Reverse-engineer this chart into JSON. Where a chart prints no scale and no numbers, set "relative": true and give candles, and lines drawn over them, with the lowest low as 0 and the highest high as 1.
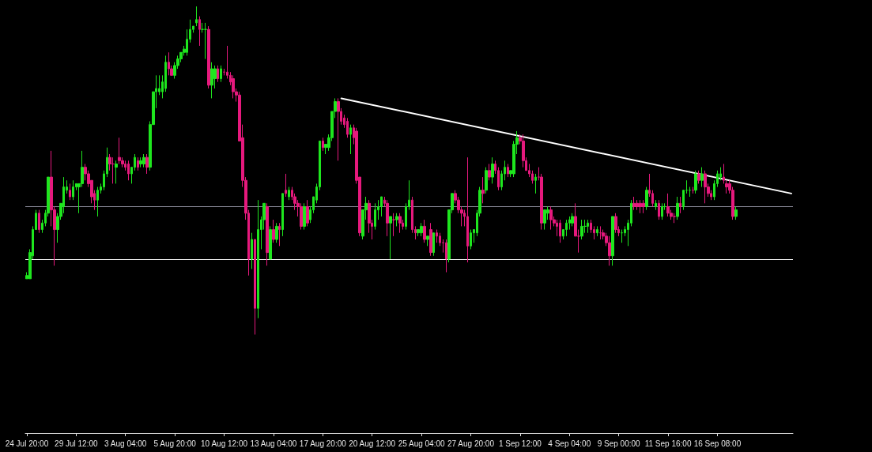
{
  "chart_data": {
    "type": "candlestick",
    "relative": true,
    "categories": [
      "24 Jul 20:00",
      null,
      null,
      null,
      null,
      null,
      null,
      null,
      null,
      null,
      null,
      null,
      null,
      null,
      null,
      null,
      "29 Jul 12:00",
      null,
      null,
      null,
      null,
      null,
      null,
      null,
      null,
      null,
      null,
      null,
      null,
      null,
      null,
      null,
      "3 Aug 04:00",
      null,
      null,
      null,
      null,
      null,
      null,
      null,
      null,
      null,
      null,
      null,
      null,
      null,
      null,
      null,
      "5 Aug 20:00",
      null,
      null,
      null,
      null,
      null,
      null,
      null,
      null,
      null,
      null,
      null,
      null,
      null,
      null,
      null,
      "10 Aug 12:00",
      null,
      null,
      null,
      null,
      null,
      null,
      null,
      null,
      null,
      null,
      null,
      null,
      null,
      null,
      null,
      "13 Aug 04:00",
      null,
      null,
      null,
      null,
      null,
      null,
      null,
      null,
      null,
      null,
      null,
      null,
      null,
      null,
      null,
      "17 Aug 20:00",
      null,
      null,
      null,
      null,
      null,
      null,
      null,
      null,
      null,
      null,
      null,
      null,
      null,
      null,
      null,
      "20 Aug 12:00",
      null,
      null,
      null,
      null,
      null,
      null,
      null,
      null,
      null,
      null,
      null,
      null,
      null,
      null,
      null,
      "25 Aug 04:00",
      null,
      null,
      null,
      null,
      null,
      null,
      null,
      null,
      null,
      null,
      null,
      null,
      null,
      null,
      null,
      "27 Aug 20:00",
      null,
      null,
      null,
      null,
      null,
      null,
      null,
      null,
      null,
      null,
      null,
      null,
      null,
      null,
      null,
      "1 Sep 12:00",
      null,
      null,
      null,
      null,
      null,
      null,
      null,
      null,
      null,
      null,
      null,
      null,
      null,
      null,
      null,
      "4 Sep 04:00",
      null,
      null,
      null,
      null,
      null,
      null,
      null,
      null,
      null,
      null,
      null,
      null,
      null,
      null,
      null,
      "9 Sep 00:00",
      null,
      null,
      null,
      null,
      null,
      null,
      null,
      null,
      null,
      null,
      null,
      null,
      null,
      null,
      null,
      "11 Sep 16:00",
      null,
      null,
      null,
      null,
      null,
      null,
      null,
      null,
      null,
      null,
      null,
      null,
      null,
      null,
      null,
      "16 Sep 08:00",
      null,
      null,
      null,
      null,
      null,
      null,
      null,
      null,
      null,
      null,
      null,
      null,
      null,
      null,
      null,
      null,
      null,
      null,
      null,
      null,
      null,
      null,
      null,
      null
    ],
    "ohlc": [
      [
        0.17,
        0.19,
        0.17,
        0.18
      ],
      [
        0.17,
        0.26,
        0.17,
        0.25
      ],
      [
        0.24,
        0.33,
        0.23,
        0.32
      ],
      [
        0.32,
        0.38,
        0.32,
        0.37
      ],
      [
        0.37,
        0.38,
        0.31,
        0.32
      ],
      [
        0.32,
        0.35,
        0.31,
        0.34
      ],
      [
        0.34,
        0.38,
        0.33,
        0.37
      ],
      [
        0.37,
        0.48,
        0.36,
        0.48
      ],
      [
        0.48,
        0.56,
        0.33,
        0.38
      ],
      [
        0.38,
        0.39,
        0.21,
        0.32
      ],
      [
        0.32,
        0.37,
        0.28,
        0.36
      ],
      [
        0.36,
        0.4,
        0.35,
        0.4
      ],
      [
        0.39,
        0.48,
        0.37,
        0.45
      ],
      [
        0.44,
        0.47,
        0.43,
        0.45
      ],
      [
        0.44,
        0.46,
        0.41,
        0.42
      ],
      [
        0.42,
        0.47,
        0.41,
        0.45
      ],
      [
        0.45,
        0.46,
        0.44,
        0.46
      ],
      [
        0.45,
        0.46,
        0.37,
        0.46
      ],
      [
        0.46,
        0.56,
        0.45,
        0.51
      ],
      [
        0.51,
        0.52,
        0.47,
        0.49
      ],
      [
        0.49,
        0.5,
        0.45,
        0.46
      ],
      [
        0.47,
        0.47,
        0.4,
        0.42
      ],
      [
        0.43,
        0.44,
        0.38,
        0.41
      ],
      [
        0.41,
        0.45,
        0.36,
        0.44
      ],
      [
        0.44,
        0.46,
        0.43,
        0.45
      ],
      [
        0.45,
        0.5,
        0.44,
        0.49
      ],
      [
        0.49,
        0.57,
        0.48,
        0.54
      ],
      [
        0.54,
        0.55,
        0.5,
        0.52
      ],
      [
        0.52,
        0.54,
        0.46,
        0.52
      ],
      [
        0.51,
        0.53,
        0.46,
        0.52
      ],
      [
        0.54,
        0.6,
        0.52,
        0.53
      ],
      [
        0.53,
        0.54,
        0.51,
        0.52
      ],
      [
        0.52,
        0.53,
        0.5,
        0.51
      ],
      [
        0.52,
        0.53,
        0.47,
        0.49
      ],
      [
        0.49,
        0.51,
        0.46,
        0.51
      ],
      [
        0.51,
        0.55,
        0.5,
        0.54
      ],
      [
        0.53,
        0.54,
        0.5,
        0.51
      ],
      [
        0.52,
        0.54,
        0.51,
        0.53
      ],
      [
        0.52,
        0.55,
        0.51,
        0.54
      ],
      [
        0.54,
        0.55,
        0.49,
        0.51
      ],
      [
        0.51,
        0.65,
        0.5,
        0.64
      ],
      [
        0.64,
        0.74,
        0.64,
        0.74
      ],
      [
        0.74,
        0.79,
        0.69,
        0.75
      ],
      [
        0.74,
        0.79,
        0.73,
        0.75
      ],
      [
        0.74,
        0.79,
        0.72,
        0.77
      ],
      [
        0.75,
        0.85,
        0.74,
        0.83
      ],
      [
        0.83,
        0.86,
        0.79,
        0.81
      ],
      [
        0.81,
        0.82,
        0.79,
        0.79
      ],
      [
        0.79,
        0.83,
        0.78,
        0.82
      ],
      [
        0.82,
        0.85,
        0.81,
        0.84
      ],
      [
        0.84,
        0.86,
        0.83,
        0.86
      ],
      [
        0.86,
        0.88,
        0.85,
        0.87
      ],
      [
        0.86,
        0.93,
        0.85,
        0.9
      ],
      [
        0.9,
        0.96,
        0.89,
        0.93
      ],
      [
        0.93,
        0.94,
        0.92,
        0.94
      ],
      [
        0.95,
        1.0,
        0.94,
        0.96
      ],
      [
        0.96,
        0.97,
        0.88,
        0.93
      ],
      [
        0.93,
        0.95,
        0.92,
        0.93
      ],
      [
        0.93,
        0.95,
        0.84,
        0.93
      ],
      [
        0.93,
        0.94,
        0.75,
        0.76
      ],
      [
        0.76,
        0.83,
        0.72,
        0.81
      ],
      [
        0.78,
        0.82,
        0.75,
        0.81
      ],
      [
        0.81,
        0.82,
        0.77,
        0.78
      ],
      [
        0.78,
        0.82,
        0.77,
        0.81
      ],
      [
        0.8,
        0.81,
        0.79,
        0.8
      ],
      [
        0.8,
        0.88,
        0.78,
        0.79
      ],
      [
        0.79,
        0.8,
        0.76,
        0.77
      ],
      [
        0.78,
        0.79,
        0.72,
        0.74
      ],
      [
        0.74,
        0.75,
        0.71,
        0.73
      ],
      [
        0.73,
        0.74,
        0.59,
        0.59
      ],
      [
        0.6,
        0.64,
        0.45,
        0.47
      ],
      [
        0.47,
        0.48,
        0.35,
        0.37
      ],
      [
        0.37,
        0.38,
        0.18,
        0.23
      ],
      [
        0.23,
        0.31,
        0.2,
        0.29
      ],
      [
        0.29,
        0.29,
        0.0,
        0.08
      ],
      [
        0.08,
        0.41,
        0.05,
        0.32
      ],
      [
        0.32,
        0.36,
        0.26,
        0.35
      ],
      [
        0.35,
        0.4,
        0.32,
        0.4
      ],
      [
        0.39,
        0.4,
        0.21,
        0.25
      ],
      [
        0.23,
        0.33,
        0.23,
        0.32
      ],
      [
        0.32,
        0.35,
        0.28,
        0.29
      ],
      [
        0.29,
        0.34,
        0.28,
        0.33
      ],
      [
        0.33,
        0.34,
        0.27,
        0.32
      ],
      [
        0.32,
        0.43,
        0.3,
        0.43
      ],
      [
        0.44,
        0.49,
        0.42,
        0.43
      ],
      [
        0.42,
        0.45,
        0.41,
        0.44
      ],
      [
        0.44,
        0.45,
        0.41,
        0.42
      ],
      [
        0.42,
        0.43,
        0.38,
        0.4
      ],
      [
        0.4,
        0.41,
        0.36,
        0.39
      ],
      [
        0.39,
        0.4,
        0.32,
        0.33
      ],
      [
        0.33,
        0.4,
        0.32,
        0.39
      ],
      [
        0.39,
        0.41,
        0.33,
        0.34
      ],
      [
        0.35,
        0.39,
        0.34,
        0.38
      ],
      [
        0.38,
        0.42,
        0.37,
        0.42
      ],
      [
        0.41,
        0.46,
        0.4,
        0.45
      ],
      [
        0.45,
        0.59,
        0.44,
        0.59
      ],
      [
        0.59,
        0.6,
        0.56,
        0.57
      ],
      [
        0.57,
        0.58,
        0.55,
        0.58
      ],
      [
        0.57,
        0.61,
        0.56,
        0.6
      ],
      [
        0.6,
        0.68,
        0.59,
        0.68
      ],
      [
        0.68,
        0.72,
        0.66,
        0.71
      ],
      [
        0.71,
        0.72,
        0.53,
        0.68
      ],
      [
        0.68,
        0.69,
        0.64,
        0.65
      ],
      [
        0.66,
        0.67,
        0.63,
        0.64
      ],
      [
        0.65,
        0.66,
        0.6,
        0.61
      ],
      [
        0.61,
        0.64,
        0.55,
        0.63
      ],
      [
        0.63,
        0.64,
        0.58,
        0.6
      ],
      [
        0.62,
        0.63,
        0.46,
        0.47
      ],
      [
        0.48,
        0.48,
        0.3,
        0.31
      ],
      [
        0.3,
        0.38,
        0.29,
        0.38
      ],
      [
        0.38,
        0.42,
        0.35,
        0.4
      ],
      [
        0.4,
        0.41,
        0.31,
        0.34
      ],
      [
        0.34,
        0.35,
        0.29,
        0.33
      ],
      [
        0.33,
        0.4,
        0.32,
        0.38
      ],
      [
        0.38,
        0.41,
        0.35,
        0.39
      ],
      [
        0.39,
        0.42,
        0.36,
        0.42
      ],
      [
        0.41,
        0.42,
        0.39,
        0.4
      ],
      [
        0.4,
        0.41,
        0.3,
        0.34
      ],
      [
        0.34,
        0.36,
        0.23,
        0.36
      ],
      [
        0.35,
        0.37,
        0.3,
        0.35
      ],
      [
        0.35,
        0.37,
        0.33,
        0.36
      ],
      [
        0.36,
        0.37,
        0.31,
        0.34
      ],
      [
        0.34,
        0.35,
        0.32,
        0.33
      ],
      [
        0.33,
        0.4,
        0.32,
        0.39
      ],
      [
        0.39,
        0.47,
        0.38,
        0.41
      ],
      [
        0.41,
        0.42,
        0.31,
        0.32
      ],
      [
        0.32,
        0.33,
        0.29,
        0.31
      ],
      [
        0.31,
        0.32,
        0.3,
        0.32
      ],
      [
        0.31,
        0.34,
        0.3,
        0.33
      ],
      [
        0.33,
        0.35,
        0.28,
        0.29
      ],
      [
        0.29,
        0.3,
        0.27,
        0.3
      ],
      [
        0.32,
        0.34,
        0.24,
        0.25
      ],
      [
        0.25,
        0.31,
        0.24,
        0.31
      ],
      [
        0.31,
        0.32,
        0.28,
        0.3
      ],
      [
        0.3,
        0.31,
        0.27,
        0.28
      ],
      [
        0.28,
        0.29,
        0.25,
        0.28
      ],
      [
        0.28,
        0.29,
        0.19,
        0.23
      ],
      [
        0.23,
        0.38,
        0.22,
        0.38
      ],
      [
        0.38,
        0.43,
        0.37,
        0.43
      ],
      [
        0.43,
        0.44,
        0.4,
        0.41
      ],
      [
        0.41,
        0.42,
        0.37,
        0.38
      ],
      [
        0.38,
        0.39,
        0.33,
        0.37
      ],
      [
        0.37,
        0.38,
        0.33,
        0.36
      ],
      [
        0.36,
        0.54,
        0.22,
        0.27
      ],
      [
        0.27,
        0.32,
        0.26,
        0.31
      ],
      [
        0.31,
        0.32,
        0.28,
        0.32
      ],
      [
        0.31,
        0.38,
        0.3,
        0.37
      ],
      [
        0.37,
        0.45,
        0.36,
        0.44
      ],
      [
        0.44,
        0.48,
        0.4,
        0.43
      ],
      [
        0.44,
        0.51,
        0.43,
        0.5
      ],
      [
        0.5,
        0.52,
        0.47,
        0.48
      ],
      [
        0.48,
        0.54,
        0.46,
        0.52
      ],
      [
        0.52,
        0.53,
        0.49,
        0.5
      ],
      [
        0.5,
        0.51,
        0.44,
        0.45
      ],
      [
        0.45,
        0.5,
        0.44,
        0.49
      ],
      [
        0.49,
        0.53,
        0.47,
        0.51
      ],
      [
        0.51,
        0.52,
        0.48,
        0.49
      ],
      [
        0.49,
        0.5,
        0.48,
        0.5
      ],
      [
        0.49,
        0.59,
        0.48,
        0.58
      ],
      [
        0.58,
        0.62,
        0.55,
        0.6
      ],
      [
        0.6,
        0.61,
        0.58,
        0.59
      ],
      [
        0.59,
        0.61,
        0.51,
        0.53
      ],
      [
        0.53,
        0.54,
        0.5,
        0.5
      ],
      [
        0.5,
        0.52,
        0.48,
        0.49
      ],
      [
        0.49,
        0.5,
        0.46,
        0.47
      ],
      [
        0.47,
        0.49,
        0.43,
        0.48
      ],
      [
        0.48,
        0.51,
        0.47,
        0.48
      ],
      [
        0.48,
        0.49,
        0.32,
        0.34
      ],
      [
        0.34,
        0.38,
        0.32,
        0.38
      ],
      [
        0.37,
        0.39,
        0.35,
        0.38
      ],
      [
        0.38,
        0.39,
        0.32,
        0.35
      ],
      [
        0.35,
        0.36,
        0.33,
        0.34
      ],
      [
        0.34,
        0.35,
        0.3,
        0.33
      ],
      [
        0.34,
        0.35,
        0.28,
        0.3
      ],
      [
        0.3,
        0.32,
        0.29,
        0.32
      ],
      [
        0.32,
        0.35,
        0.3,
        0.34
      ],
      [
        0.34,
        0.36,
        0.32,
        0.35
      ],
      [
        0.34,
        0.37,
        0.33,
        0.36
      ],
      [
        0.36,
        0.4,
        0.3,
        0.3
      ],
      [
        0.3,
        0.32,
        0.25,
        0.3
      ],
      [
        0.3,
        0.35,
        0.29,
        0.33
      ],
      [
        0.33,
        0.35,
        0.31,
        0.33
      ],
      [
        0.33,
        0.35,
        0.31,
        0.34
      ],
      [
        0.34,
        0.35,
        0.31,
        0.32
      ],
      [
        0.32,
        0.33,
        0.29,
        0.31
      ],
      [
        0.31,
        0.33,
        0.3,
        0.32
      ],
      [
        0.31,
        0.33,
        0.29,
        0.31
      ],
      [
        0.31,
        0.32,
        0.29,
        0.3
      ],
      [
        0.3,
        0.31,
        0.27,
        0.28
      ],
      [
        0.28,
        0.3,
        0.21,
        0.24
      ],
      [
        0.24,
        0.36,
        0.21,
        0.36
      ],
      [
        0.36,
        0.37,
        0.31,
        0.32
      ],
      [
        0.32,
        0.33,
        0.3,
        0.31
      ],
      [
        0.31,
        0.32,
        0.28,
        0.31
      ],
      [
        0.31,
        0.33,
        0.3,
        0.32
      ],
      [
        0.32,
        0.35,
        0.27,
        0.34
      ],
      [
        0.34,
        0.41,
        0.33,
        0.4
      ],
      [
        0.4,
        0.42,
        0.38,
        0.39
      ],
      [
        0.4,
        0.41,
        0.38,
        0.39
      ],
      [
        0.4,
        0.41,
        0.37,
        0.39
      ],
      [
        0.4,
        0.41,
        0.37,
        0.39
      ],
      [
        0.39,
        0.45,
        0.38,
        0.44
      ],
      [
        0.44,
        0.49,
        0.42,
        0.43
      ],
      [
        0.43,
        0.44,
        0.39,
        0.4
      ],
      [
        0.39,
        0.41,
        0.38,
        0.4
      ],
      [
        0.4,
        0.41,
        0.35,
        0.36
      ],
      [
        0.36,
        0.4,
        0.35,
        0.39
      ],
      [
        0.39,
        0.4,
        0.38,
        0.39
      ],
      [
        0.39,
        0.43,
        0.36,
        0.37
      ],
      [
        0.37,
        0.38,
        0.35,
        0.36
      ],
      [
        0.36,
        0.37,
        0.34,
        0.36
      ],
      [
        0.36,
        0.42,
        0.35,
        0.4
      ],
      [
        0.4,
        0.42,
        0.37,
        0.39
      ],
      [
        0.39,
        0.44,
        0.38,
        0.44
      ],
      [
        0.44,
        0.47,
        0.43,
        0.44
      ],
      [
        0.44,
        0.45,
        0.42,
        0.44
      ],
      [
        0.44,
        0.45,
        0.43,
        0.44
      ],
      [
        0.44,
        0.5,
        0.43,
        0.49
      ],
      [
        0.49,
        0.5,
        0.46,
        0.47
      ],
      [
        0.47,
        0.51,
        0.45,
        0.49
      ],
      [
        0.49,
        0.5,
        0.4,
        0.45
      ],
      [
        0.45,
        0.46,
        0.42,
        0.43
      ],
      [
        0.43,
        0.44,
        0.41,
        0.42
      ],
      [
        0.42,
        0.47,
        0.41,
        0.46
      ],
      [
        0.46,
        0.5,
        0.45,
        0.49
      ],
      [
        0.48,
        0.51,
        0.47,
        0.49
      ],
      [
        0.48,
        0.52,
        0.46,
        0.47
      ],
      [
        0.46,
        0.47,
        0.43,
        0.45
      ],
      [
        0.46,
        0.47,
        0.43,
        0.44
      ],
      [
        0.44,
        0.45,
        0.35,
        0.36
      ],
      [
        0.36,
        0.39,
        0.35,
        0.38
      ],
      null,
      null,
      null,
      null,
      null,
      null,
      null,
      null,
      null,
      null,
      null,
      null,
      null,
      null,
      null,
      null,
      null,
      null
    ],
    "colors": [
      "#1ee61e",
      "#1ee61e",
      "#1ee61e",
      "#1ee61e",
      "#e6197d",
      "#1ee61e",
      "#1ee61e",
      "#1ee61e",
      "#e6197d",
      "#e6197d",
      "#1ee61e",
      "#1ee61e",
      "#1ee61e",
      "#1ee61e",
      "#e6197d",
      "#1ee61e",
      "#1ee61e",
      "#1ee61e",
      "#1ee61e",
      "#e6197d",
      "#e6197d",
      "#e6197d",
      "#e6197d",
      "#1ee61e",
      "#1ee61e",
      "#1ee61e",
      "#1ee61e",
      "#e6197d",
      "#e6197d",
      "#1ee61e",
      "#e6197d",
      "#e6197d",
      "#e6197d",
      "#e6197d",
      "#1ee61e",
      "#1ee61e",
      "#e6197d",
      "#1ee61e",
      "#1ee61e",
      "#e6197d",
      "#1ee61e",
      "#1ee61e",
      "#1ee61e",
      "#1ee61e",
      "#1ee61e",
      "#1ee61e",
      "#e6197d",
      "#e6197d",
      "#1ee61e",
      "#1ee61e",
      "#1ee61e",
      "#1ee61e",
      "#1ee61e",
      "#1ee61e",
      "#1ee61e",
      "#1ee61e",
      "#e6197d",
      "#1ee61e",
      "#1ee61e",
      "#e6197d",
      "#1ee61e",
      "#1ee61e",
      "#e6197d",
      "#1ee61e",
      "#e6197d",
      "#e6197d",
      "#e6197d",
      "#e6197d",
      "#e6197d",
      "#e6197d",
      "#e6197d",
      "#e6197d",
      "#e6197d",
      "#1ee61e",
      "#e6197d",
      "#1ee61e",
      "#1ee61e",
      "#1ee61e",
      "#e6197d",
      "#1ee61e",
      "#e6197d",
      "#1ee61e",
      "#e6197d",
      "#1ee61e",
      "#e6197d",
      "#1ee61e",
      "#e6197d",
      "#e6197d",
      "#e6197d",
      "#e6197d",
      "#1ee61e",
      "#e6197d",
      "#1ee61e",
      "#1ee61e",
      "#1ee61e",
      "#1ee61e",
      "#e6197d",
      "#1ee61e",
      "#1ee61e",
      "#1ee61e",
      "#1ee61e",
      "#e6197d",
      "#e6197d",
      "#e6197d",
      "#e6197d",
      "#1ee61e",
      "#e6197d",
      "#e6197d",
      "#e6197d",
      "#1ee61e",
      "#1ee61e",
      "#e6197d",
      "#e6197d",
      "#1ee61e",
      "#1ee61e",
      "#1ee61e",
      "#e6197d",
      "#e6197d",
      "#1ee61e",
      "#e6197d",
      "#1ee61e",
      "#e6197d",
      "#e6197d",
      "#1ee61e",
      "#1ee61e",
      "#e6197d",
      "#e6197d",
      "#1ee61e",
      "#1ee61e",
      "#e6197d",
      "#1ee61e",
      "#e6197d",
      "#1ee61e",
      "#e6197d",
      "#e6197d",
      "#e6197d",
      "#e6197d",
      "#1ee61e",
      "#1ee61e",
      "#e6197d",
      "#e6197d",
      "#e6197d",
      "#e6197d",
      "#e6197d",
      "#1ee61e",
      "#1ee61e",
      "#1ee61e",
      "#1ee61e",
      "#e6197d",
      "#1ee61e",
      "#e6197d",
      "#1ee61e",
      "#e6197d",
      "#e6197d",
      "#1ee61e",
      "#1ee61e",
      "#e6197d",
      "#1ee61e",
      "#1ee61e",
      "#1ee61e",
      "#e6197d",
      "#e6197d",
      "#e6197d",
      "#e6197d",
      "#e6197d",
      "#1ee61e",
      "#e6197d",
      "#e6197d",
      "#1ee61e",
      "#1ee61e",
      "#e6197d",
      "#e6197d",
      "#e6197d",
      "#e6197d",
      "#1ee61e",
      "#1ee61e",
      "#1ee61e",
      "#1ee61e",
      "#e6197d",
      "#e6197d",
      "#1ee61e",
      "#1ee61e",
      "#1ee61e",
      "#e6197d",
      "#e6197d",
      "#1ee61e",
      "#e6197d",
      "#e6197d",
      "#e6197d",
      "#e6197d",
      "#1ee61e",
      "#e6197d",
      "#e6197d",
      "#1ee61e",
      "#1ee61e",
      "#1ee61e",
      "#1ee61e",
      "#e6197d",
      "#e6197d",
      "#e6197d",
      "#e6197d",
      "#1ee61e",
      "#e6197d",
      "#e6197d",
      "#1ee61e",
      "#e6197d",
      "#1ee61e",
      "#1ee61e",
      "#e6197d",
      "#e6197d",
      "#e6197d",
      "#1ee61e",
      "#e6197d",
      "#1ee61e",
      "#1ee61e",
      "#1ee61e",
      "#e6197d",
      "#1ee61e",
      "#e6197d",
      "#1ee61e",
      "#e6197d",
      "#e6197d",
      "#e6197d",
      "#1ee61e",
      "#1ee61e",
      "#1ee61e",
      "#e6197d",
      "#e6197d",
      "#e6197d",
      "#e6197d",
      "#1ee61e",
      null,
      null,
      null,
      null,
      null,
      null,
      null,
      null,
      null,
      null,
      null,
      null,
      null,
      null,
      null,
      null,
      null,
      null
    ],
    "series": [
      {
        "type": "line",
        "color": "#ffffff",
        "values": [
          null,
          null,
          null,
          null,
          null,
          null,
          null,
          null,
          null,
          null,
          null,
          null,
          null,
          null,
          null,
          null,
          null,
          null,
          null,
          null,
          null,
          null,
          null,
          null,
          null,
          null,
          null,
          null,
          null,
          null,
          null,
          null,
          null,
          null,
          null,
          null,
          null,
          null,
          null,
          null,
          null,
          null,
          null,
          null,
          null,
          null,
          null,
          null,
          null,
          null,
          null,
          null,
          null,
          null,
          null,
          null,
          null,
          null,
          null,
          null,
          null,
          null,
          null,
          null,
          null,
          null,
          null,
          null,
          null,
          null,
          null,
          null,
          null,
          null,
          null,
          null,
          null,
          null,
          null,
          null,
          null,
          null,
          null,
          null,
          null,
          null,
          null,
          null,
          null,
          null,
          null,
          null,
          null,
          null,
          null,
          null,
          null,
          null,
          null,
          null,
          null,
          null,
          0.72,
          null,
          null,
          null,
          null,
          null,
          null,
          null,
          null,
          null,
          null,
          null,
          null,
          null,
          null,
          null,
          null,
          null,
          null,
          null,
          null,
          null,
          null,
          null,
          null,
          null,
          null,
          null,
          null,
          null,
          null,
          null,
          null,
          null,
          null,
          null,
          null,
          null,
          null,
          null,
          null,
          null,
          null,
          null,
          null,
          null,
          null,
          null,
          null,
          null,
          null,
          null,
          null,
          null,
          null,
          null,
          null,
          null,
          null,
          null,
          null,
          null,
          null,
          null,
          null,
          null,
          null,
          null,
          null,
          null,
          null,
          null,
          null,
          null,
          null,
          null,
          null,
          null,
          null,
          null,
          null,
          null,
          null,
          null,
          null,
          null,
          null,
          null,
          null,
          null,
          null,
          null,
          null,
          null,
          null,
          null,
          null,
          null,
          null,
          null,
          null,
          null,
          null,
          null,
          null,
          null,
          null,
          null,
          null,
          null,
          null,
          null,
          null,
          null,
          null,
          null,
          null,
          null,
          null,
          null,
          null,
          null,
          null,
          null,
          null,
          null,
          null,
          null,
          null,
          null,
          null,
          null,
          null,
          null,
          null,
          null,
          null,
          null,
          null,
          null,
          null,
          null,
          null,
          null,
          null,
          null,
          0.43
        ]
      }
    ],
    "ref_lines": [
      {
        "axis": "y",
        "value": 0.39,
        "color": "#8c8c9a"
      },
      {
        "axis": "y",
        "value": 0.23,
        "color": "#ffffff"
      }
    ],
    "grid": false,
    "line_style": "solid"
  }
}
